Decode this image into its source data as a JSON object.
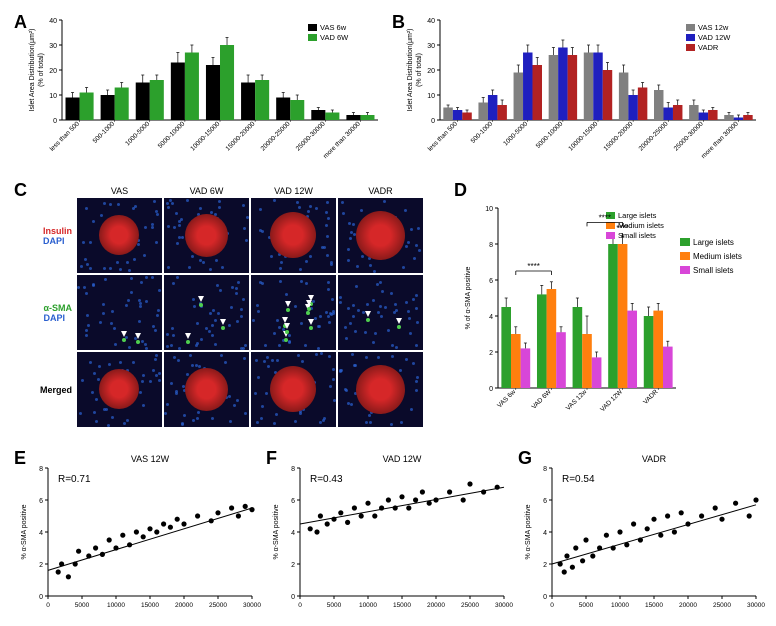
{
  "panelA": {
    "label": "A",
    "type": "bar",
    "ylabel": "Islet Area Distribution(μm²)\n(% of total)",
    "categories": [
      "less than 500",
      "500-1000",
      "1000-5000",
      "5000-10000",
      "10000-15000",
      "15000-20000",
      "20000-25000",
      "25000-30000",
      "more than 30000"
    ],
    "series": [
      {
        "name": "VAS 6w",
        "color": "#000000",
        "values": [
          9,
          10,
          15,
          23,
          22,
          15,
          9,
          4,
          2
        ],
        "err": [
          2,
          2,
          3,
          4,
          3,
          3,
          2,
          1,
          1
        ]
      },
      {
        "name": "VAD 6W",
        "color": "#2ca02c",
        "values": [
          11,
          13,
          16,
          27,
          30,
          16,
          8,
          3,
          2
        ],
        "err": [
          2,
          2,
          2,
          3,
          3,
          2,
          2,
          1,
          1
        ]
      }
    ],
    "ylim": [
      0,
      40
    ],
    "ytick_step": 10,
    "bar_width": 0.4,
    "background_color": "#ffffff"
  },
  "panelB": {
    "label": "B",
    "type": "bar",
    "ylabel": "Islet Area Distribution(μm²)\n(% of total)",
    "categories": [
      "less than 500",
      "500-1000",
      "1000-5000",
      "5000-10000",
      "10000-15000",
      "15000-20000",
      "20000-25000",
      "25000-30000",
      "more than 30000"
    ],
    "series": [
      {
        "name": "VAS 12w",
        "color": "#808080",
        "values": [
          5,
          7,
          19,
          26,
          27,
          19,
          12,
          6,
          2
        ],
        "err": [
          1,
          2,
          3,
          3,
          3,
          3,
          2,
          2,
          1
        ]
      },
      {
        "name": "VAD 12W",
        "color": "#1f1fbf",
        "values": [
          4,
          10,
          27,
          29,
          27,
          10,
          5,
          3,
          1
        ],
        "err": [
          1,
          2,
          3,
          3,
          3,
          2,
          2,
          1,
          1
        ]
      },
      {
        "name": "VADR",
        "color": "#b22222",
        "values": [
          3,
          6,
          22,
          26,
          20,
          13,
          6,
          4,
          2
        ],
        "err": [
          1,
          2,
          3,
          3,
          3,
          2,
          2,
          1,
          1
        ]
      }
    ],
    "ylim": [
      0,
      40
    ],
    "ytick_step": 10,
    "bar_width": 0.27,
    "background_color": "#ffffff"
  },
  "panelC": {
    "label": "C",
    "columns": [
      "VAS",
      "VAD 6W",
      "VAD 12W",
      "VADR"
    ],
    "rows": [
      {
        "label": "Insulin",
        "sublabel": "DAPI",
        "label_color": "#d62728",
        "sublabel_color": "#2a5fcf",
        "show_red": true,
        "show_arrows": false
      },
      {
        "label": "α-SMA",
        "sublabel": "DAPI",
        "label_color": "#2ca02c",
        "sublabel_color": "#2a5fcf",
        "show_red": false,
        "show_arrows": true
      },
      {
        "label": "Merged",
        "sublabel": "",
        "label_color": "#000000",
        "sublabel_color": "#000000",
        "show_red": true,
        "show_arrows": false
      }
    ],
    "arrows_per_col": [
      2,
      3,
      8,
      2
    ]
  },
  "panelD": {
    "label": "D",
    "type": "bar",
    "ylabel": "% of α-SMA positive",
    "categories": [
      "VAS 6w",
      "VAD 6W",
      "VAS 12w",
      "VAD 12W",
      "VADR"
    ],
    "series": [
      {
        "name": "Large islets",
        "color": "#2ca02c",
        "values": [
          4.5,
          5.2,
          4.5,
          8.0,
          4.0
        ],
        "err": [
          0.5,
          0.5,
          0.5,
          0.5,
          0.5
        ]
      },
      {
        "name": "Medium islets",
        "color": "#ff7f0e",
        "values": [
          3.0,
          5.5,
          3.0,
          8.0,
          4.3
        ],
        "err": [
          0.4,
          0.4,
          1.0,
          0.4,
          0.4
        ]
      },
      {
        "name": "Small islets",
        "color": "#d846d8",
        "values": [
          2.2,
          3.1,
          1.7,
          4.3,
          2.3
        ],
        "err": [
          0.3,
          0.3,
          0.3,
          0.4,
          0.3
        ]
      }
    ],
    "ylim": [
      0,
      10
    ],
    "ytick_step": 2,
    "significance": [
      {
        "from": 0,
        "to": 1,
        "label": "****",
        "y": 6.5
      },
      {
        "from": 2,
        "to": 3,
        "label": "****",
        "y": 9.2
      },
      {
        "from": 3,
        "to": 3,
        "label": "****",
        "y": 8.6
      }
    ],
    "bar_width": 0.27
  },
  "panelE": {
    "label": "E",
    "title": "VAS 12W",
    "type": "scatter",
    "ylabel": "% α-SMA positive",
    "xlabel": "",
    "R": "R=0.71",
    "xlim": [
      0,
      30000
    ],
    "xtick_step": 5000,
    "ylim": [
      0,
      8
    ],
    "ytick_step": 2,
    "points": [
      [
        1500,
        1.5
      ],
      [
        2000,
        2.0
      ],
      [
        3000,
        1.2
      ],
      [
        4000,
        2.0
      ],
      [
        4500,
        2.8
      ],
      [
        6000,
        2.5
      ],
      [
        7000,
        3.0
      ],
      [
        8000,
        2.6
      ],
      [
        9000,
        3.5
      ],
      [
        10000,
        3.0
      ],
      [
        11000,
        3.8
      ],
      [
        12000,
        3.2
      ],
      [
        13000,
        4.0
      ],
      [
        14000,
        3.7
      ],
      [
        15000,
        4.2
      ],
      [
        16000,
        4.0
      ],
      [
        17000,
        4.5
      ],
      [
        18000,
        4.3
      ],
      [
        19000,
        4.8
      ],
      [
        20000,
        4.5
      ],
      [
        22000,
        5.0
      ],
      [
        24000,
        4.7
      ],
      [
        25000,
        5.2
      ],
      [
        27000,
        5.5
      ],
      [
        28000,
        5.0
      ],
      [
        29000,
        5.6
      ],
      [
        30000,
        5.4
      ]
    ],
    "line": {
      "x1": 0,
      "y1": 1.6,
      "x2": 30000,
      "y2": 5.5
    }
  },
  "panelF": {
    "label": "F",
    "title": "VAD 12W",
    "type": "scatter",
    "ylabel": "% α-SMA positive",
    "xlabel": "",
    "R": "R=0.43",
    "xlim": [
      0,
      30000
    ],
    "xtick_step": 5000,
    "ylim": [
      0,
      8
    ],
    "ytick_step": 2,
    "points": [
      [
        1500,
        4.2
      ],
      [
        2500,
        4.0
      ],
      [
        3000,
        5.0
      ],
      [
        4000,
        4.5
      ],
      [
        5000,
        4.8
      ],
      [
        6000,
        5.2
      ],
      [
        7000,
        4.6
      ],
      [
        8000,
        5.5
      ],
      [
        9000,
        5.0
      ],
      [
        10000,
        5.8
      ],
      [
        11000,
        5.0
      ],
      [
        12000,
        5.5
      ],
      [
        13000,
        6.0
      ],
      [
        14000,
        5.5
      ],
      [
        15000,
        6.2
      ],
      [
        16000,
        5.5
      ],
      [
        17000,
        6.0
      ],
      [
        18000,
        6.5
      ],
      [
        19000,
        5.8
      ],
      [
        20000,
        6.0
      ],
      [
        22000,
        6.5
      ],
      [
        24000,
        6.0
      ],
      [
        25000,
        7.0
      ],
      [
        27000,
        6.5
      ],
      [
        29000,
        6.8
      ]
    ],
    "line": {
      "x1": 0,
      "y1": 4.5,
      "x2": 30000,
      "y2": 6.8
    }
  },
  "panelG": {
    "label": "G",
    "title": "VADR",
    "type": "scatter",
    "ylabel": "% α-SMA positive",
    "xlabel": "",
    "R": "R=0.54",
    "xlim": [
      0,
      30000
    ],
    "xtick_step": 5000,
    "ylim": [
      0,
      8
    ],
    "ytick_step": 2,
    "points": [
      [
        1200,
        2.0
      ],
      [
        1800,
        1.5
      ],
      [
        2200,
        2.5
      ],
      [
        3000,
        1.8
      ],
      [
        3500,
        3.0
      ],
      [
        4500,
        2.2
      ],
      [
        5000,
        3.5
      ],
      [
        6000,
        2.5
      ],
      [
        7000,
        3.0
      ],
      [
        8000,
        3.8
      ],
      [
        9000,
        3.0
      ],
      [
        10000,
        4.0
      ],
      [
        11000,
        3.2
      ],
      [
        12000,
        4.5
      ],
      [
        13000,
        3.5
      ],
      [
        14000,
        4.2
      ],
      [
        15000,
        4.8
      ],
      [
        16000,
        3.8
      ],
      [
        17000,
        5.0
      ],
      [
        18000,
        4.0
      ],
      [
        19000,
        5.2
      ],
      [
        20000,
        4.5
      ],
      [
        22000,
        5.0
      ],
      [
        24000,
        5.5
      ],
      [
        25000,
        4.8
      ],
      [
        27000,
        5.8
      ],
      [
        29000,
        5.0
      ],
      [
        30000,
        6.0
      ]
    ],
    "line": {
      "x1": 0,
      "y1": 2.0,
      "x2": 30000,
      "y2": 5.7
    }
  }
}
